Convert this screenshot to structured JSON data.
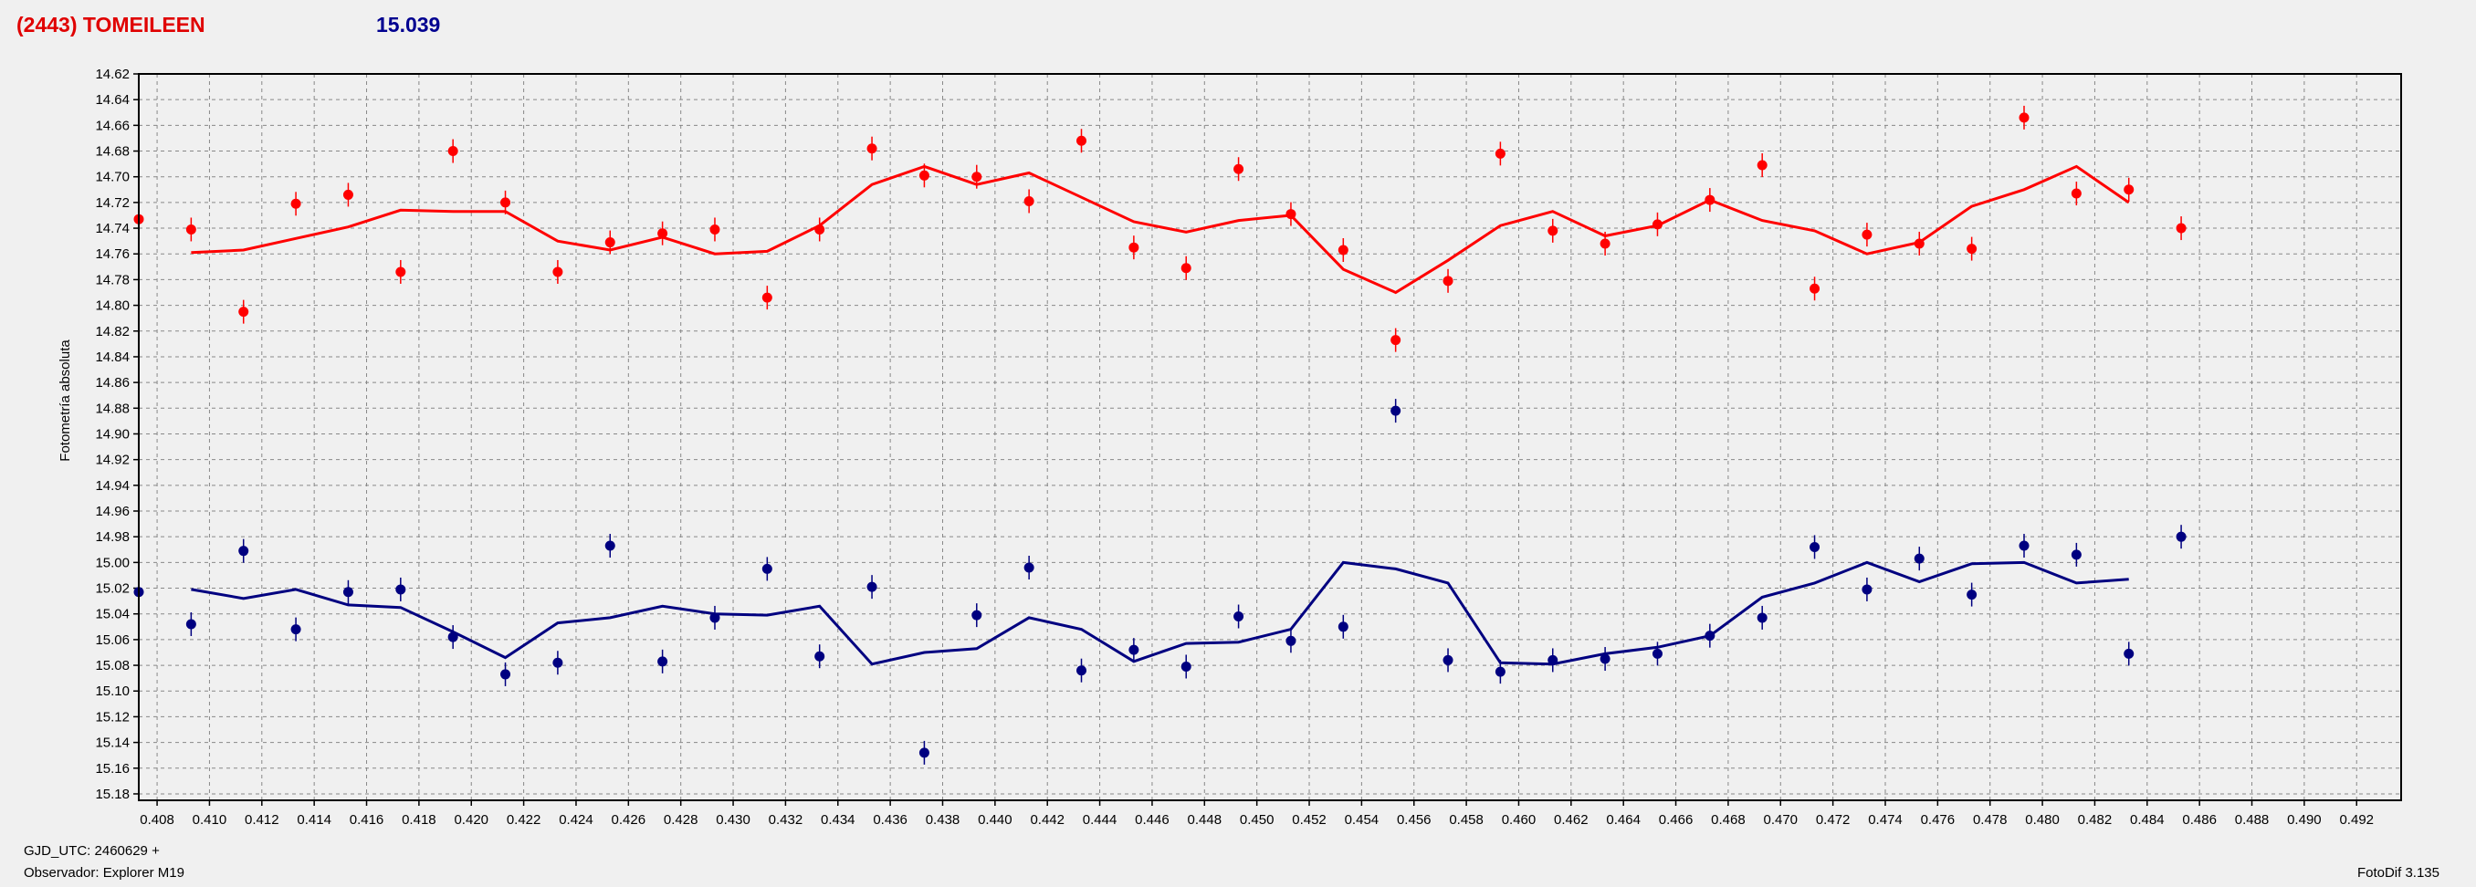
{
  "header": {
    "object_name": "(2443) TOMEILEEN",
    "magnitude": "15.039"
  },
  "footer": {
    "gjd": "GJD_UTC: 2460629 +",
    "observer": "Observador: Explorer M19",
    "version": "FotoDif 3.135"
  },
  "colors": {
    "series_red": "#ff0000",
    "series_blue": "#000080",
    "grid": "#888888",
    "plot_bg": "#f0f0f0"
  },
  "chart_data": {
    "type": "scatter",
    "ylabel": "Fotometría absoluta",
    "xlabel": "",
    "xlim": [
      0.4073,
      0.4937
    ],
    "ylim": [
      15.185,
      14.62
    ],
    "y_inverted": true,
    "grid": true,
    "x_ticks": [
      "0.408",
      "0.410",
      "0.412",
      "0.414",
      "0.416",
      "0.418",
      "0.420",
      "0.422",
      "0.424",
      "0.426",
      "0.428",
      "0.430",
      "0.432",
      "0.434",
      "0.436",
      "0.438",
      "0.440",
      "0.442",
      "0.444",
      "0.446",
      "0.448",
      "0.450",
      "0.452",
      "0.454",
      "0.456",
      "0.458",
      "0.460",
      "0.462",
      "0.464",
      "0.466",
      "0.468",
      "0.470",
      "0.472",
      "0.474",
      "0.476",
      "0.478",
      "0.480",
      "0.482",
      "0.484",
      "0.486",
      "0.488",
      "0.490",
      "0.492"
    ],
    "y_ticks": [
      "14.62",
      "14.64",
      "14.66",
      "14.68",
      "14.70",
      "14.72",
      "14.74",
      "14.76",
      "14.78",
      "14.80",
      "14.82",
      "14.84",
      "14.86",
      "14.88",
      "14.90",
      "14.92",
      "14.94",
      "14.96",
      "14.98",
      "15.00",
      "15.02",
      "15.04",
      "15.06",
      "15.08",
      "15.10",
      "15.12",
      "15.14",
      "15.16",
      "15.18"
    ],
    "series": [
      {
        "color": "#ff0000",
        "points": [
          [
            0.4073,
            14.733
          ],
          [
            0.4093,
            14.741
          ],
          [
            0.4113,
            14.805
          ],
          [
            0.4133,
            14.721
          ],
          [
            0.4153,
            14.714
          ],
          [
            0.4173,
            14.774
          ],
          [
            0.4193,
            14.68
          ],
          [
            0.4213,
            14.72
          ],
          [
            0.4233,
            14.774
          ],
          [
            0.4253,
            14.751
          ],
          [
            0.4273,
            14.744
          ],
          [
            0.4293,
            14.741
          ],
          [
            0.4313,
            14.794
          ],
          [
            0.4333,
            14.741
          ],
          [
            0.4353,
            14.678
          ],
          [
            0.4373,
            14.699
          ],
          [
            0.4393,
            14.7
          ],
          [
            0.4413,
            14.719
          ],
          [
            0.4433,
            14.672
          ],
          [
            0.4453,
            14.755
          ],
          [
            0.4473,
            14.771
          ],
          [
            0.4493,
            14.694
          ],
          [
            0.4513,
            14.729
          ],
          [
            0.4533,
            14.757
          ],
          [
            0.4553,
            14.827
          ],
          [
            0.4573,
            14.781
          ],
          [
            0.4593,
            14.682
          ],
          [
            0.4613,
            14.742
          ],
          [
            0.4633,
            14.752
          ],
          [
            0.4653,
            14.737
          ],
          [
            0.4673,
            14.718
          ],
          [
            0.4693,
            14.691
          ],
          [
            0.4713,
            14.787
          ],
          [
            0.4733,
            14.745
          ],
          [
            0.4753,
            14.752
          ],
          [
            0.4773,
            14.756
          ],
          [
            0.4793,
            14.654
          ],
          [
            0.4813,
            14.713
          ],
          [
            0.4833,
            14.71
          ],
          [
            0.4853,
            14.74
          ]
        ],
        "trend": [
          [
            0.4093,
            14.759
          ],
          [
            0.4113,
            14.757
          ],
          [
            0.4133,
            14.748
          ],
          [
            0.4153,
            14.739
          ],
          [
            0.4173,
            14.726
          ],
          [
            0.4193,
            14.727
          ],
          [
            0.4213,
            14.727
          ],
          [
            0.4233,
            14.75
          ],
          [
            0.4253,
            14.757
          ],
          [
            0.4273,
            14.747
          ],
          [
            0.4293,
            14.76
          ],
          [
            0.4313,
            14.758
          ],
          [
            0.4333,
            14.738
          ],
          [
            0.4353,
            14.706
          ],
          [
            0.4373,
            14.692
          ],
          [
            0.4393,
            14.706
          ],
          [
            0.4413,
            14.697
          ],
          [
            0.4433,
            14.716
          ],
          [
            0.4453,
            14.735
          ],
          [
            0.4473,
            14.743
          ],
          [
            0.4493,
            14.734
          ],
          [
            0.4513,
            14.73
          ],
          [
            0.4533,
            14.772
          ],
          [
            0.4553,
            14.79
          ],
          [
            0.4573,
            14.765
          ],
          [
            0.4593,
            14.738
          ],
          [
            0.4613,
            14.727
          ],
          [
            0.4633,
            14.746
          ],
          [
            0.4653,
            14.738
          ],
          [
            0.4673,
            14.718
          ],
          [
            0.4693,
            14.734
          ],
          [
            0.4713,
            14.742
          ],
          [
            0.4733,
            14.76
          ],
          [
            0.4753,
            14.751
          ],
          [
            0.4773,
            14.723
          ],
          [
            0.4793,
            14.71
          ],
          [
            0.4813,
            14.692
          ],
          [
            0.4833,
            14.72
          ]
        ]
      },
      {
        "color": "#000080",
        "points": [
          [
            0.4073,
            15.023
          ],
          [
            0.4093,
            15.048
          ],
          [
            0.4113,
            14.991
          ],
          [
            0.4133,
            15.052
          ],
          [
            0.4153,
            15.023
          ],
          [
            0.4173,
            15.021
          ],
          [
            0.4193,
            15.058
          ],
          [
            0.4213,
            15.087
          ],
          [
            0.4233,
            15.078
          ],
          [
            0.4253,
            14.987
          ],
          [
            0.4273,
            15.077
          ],
          [
            0.4293,
            15.043
          ],
          [
            0.4313,
            15.005
          ],
          [
            0.4333,
            15.073
          ],
          [
            0.4353,
            15.019
          ],
          [
            0.4373,
            15.148
          ],
          [
            0.4393,
            15.041
          ],
          [
            0.4413,
            15.004
          ],
          [
            0.4433,
            15.084
          ],
          [
            0.4453,
            15.068
          ],
          [
            0.4473,
            15.081
          ],
          [
            0.4493,
            15.042
          ],
          [
            0.4513,
            15.061
          ],
          [
            0.4533,
            15.05
          ],
          [
            0.4553,
            14.882
          ],
          [
            0.4573,
            15.076
          ],
          [
            0.4593,
            15.085
          ],
          [
            0.4613,
            15.076
          ],
          [
            0.4633,
            15.075
          ],
          [
            0.4653,
            15.071
          ],
          [
            0.4673,
            15.057
          ],
          [
            0.4693,
            15.043
          ],
          [
            0.4713,
            14.988
          ],
          [
            0.4733,
            15.021
          ],
          [
            0.4753,
            14.997
          ],
          [
            0.4773,
            15.025
          ],
          [
            0.4793,
            14.987
          ],
          [
            0.4813,
            14.994
          ],
          [
            0.4833,
            15.071
          ],
          [
            0.4853,
            14.98
          ]
        ],
        "trend": [
          [
            0.4093,
            15.021
          ],
          [
            0.4113,
            15.028
          ],
          [
            0.4133,
            15.021
          ],
          [
            0.4153,
            15.033
          ],
          [
            0.4173,
            15.035
          ],
          [
            0.4193,
            15.054
          ],
          [
            0.4213,
            15.074
          ],
          [
            0.4233,
            15.047
          ],
          [
            0.4253,
            15.043
          ],
          [
            0.4273,
            15.034
          ],
          [
            0.4293,
            15.04
          ],
          [
            0.4313,
            15.041
          ],
          [
            0.4333,
            15.034
          ],
          [
            0.4353,
            15.079
          ],
          [
            0.4373,
            15.07
          ],
          [
            0.4393,
            15.067
          ],
          [
            0.4413,
            15.043
          ],
          [
            0.4433,
            15.052
          ],
          [
            0.4453,
            15.077
          ],
          [
            0.4473,
            15.063
          ],
          [
            0.4493,
            15.062
          ],
          [
            0.4513,
            15.052
          ],
          [
            0.4533,
            15.0
          ],
          [
            0.4553,
            15.005
          ],
          [
            0.4573,
            15.016
          ],
          [
            0.4593,
            15.078
          ],
          [
            0.4613,
            15.079
          ],
          [
            0.4633,
            15.071
          ],
          [
            0.4653,
            15.066
          ],
          [
            0.4673,
            15.057
          ],
          [
            0.4693,
            15.027
          ],
          [
            0.4713,
            15.016
          ],
          [
            0.4733,
            15.0
          ],
          [
            0.4753,
            15.015
          ],
          [
            0.4773,
            15.001
          ],
          [
            0.4793,
            15.0
          ],
          [
            0.4813,
            15.016
          ],
          [
            0.4833,
            15.013
          ]
        ]
      }
    ]
  }
}
